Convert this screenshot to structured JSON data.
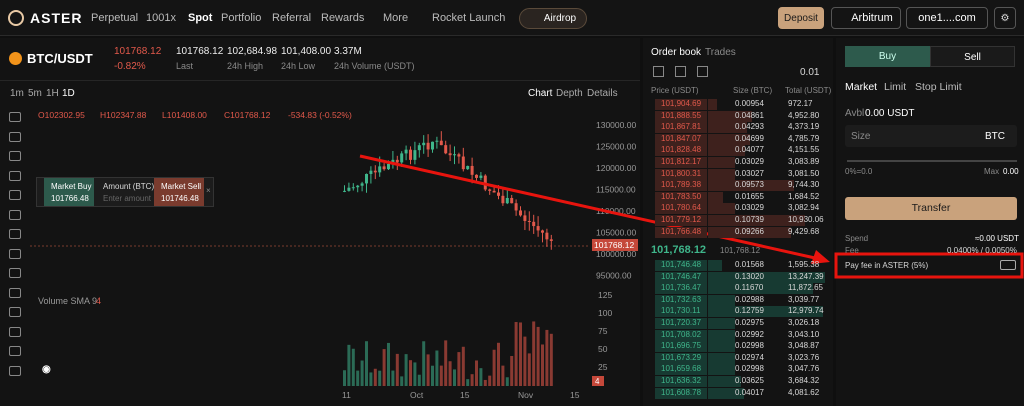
{
  "nav": {
    "logo": "ASTER",
    "items": [
      "Perpetual",
      "1001x",
      "Spot",
      "Portfolio",
      "Referral",
      "Rewards",
      "More",
      "Rocket Launch"
    ],
    "airdrop": "Airdrop",
    "deposit": "Deposit",
    "network": "Arbitrum",
    "account": "one1....com"
  },
  "ticker": {
    "pair": "BTC/USDT",
    "price": "101768.12",
    "change": "-0.82%",
    "stats": [
      {
        "value": "101768.12",
        "label": "Last"
      },
      {
        "value": "102,684.98",
        "label": "24h High"
      },
      {
        "value": "101,408.00",
        "label": "24h Low"
      },
      {
        "value": "3.37M",
        "label": "24h Volume (USDT)"
      }
    ]
  },
  "toolbar": {
    "intervals": [
      "1m",
      "5m",
      "1H",
      "1D"
    ],
    "views": [
      "Chart",
      "Depth",
      "Details"
    ]
  },
  "ohlc": [
    "O102302.95",
    "H102347.88",
    "L101408.00",
    "C101768.12",
    "-534.83 (-0.52%)"
  ],
  "quick_trade": {
    "buy": "Market Buy",
    "buy_price": "101766.48",
    "amount": "Amount (BTC)",
    "placeholder": "Enter amount",
    "sell": "Market Sell",
    "sell_price": "101746.48"
  },
  "price_axis": [
    "130000.00",
    "125000.00",
    "120000.00",
    "115000.00",
    "110000.00",
    "105000.00",
    "100000.00",
    "95000.00"
  ],
  "current_price": "101768.12",
  "volume": {
    "label": "Volume SMA 9",
    "value": "4",
    "axis": [
      "125",
      "100",
      "75",
      "50",
      "25"
    ],
    "current": "4"
  },
  "x_axis": [
    "11",
    "Oct",
    "15",
    "Nov",
    "15"
  ],
  "order_book": {
    "tabs": [
      "Order book",
      "Trades"
    ],
    "step": "0.01",
    "headers": [
      "Price (USDT)",
      "Size (BTC)",
      "Total (USDT)"
    ],
    "asks": [
      [
        "101,904.69",
        "0.00954",
        "972.17"
      ],
      [
        "101,888.55",
        "0.04861",
        "4,952.80"
      ],
      [
        "101,867.81",
        "0.04293",
        "4,373.19"
      ],
      [
        "101,847.07",
        "0.04699",
        "4,785.79"
      ],
      [
        "101,828.48",
        "0.04077",
        "4,151.55"
      ],
      [
        "101,812.17",
        "0.03029",
        "3,083.89"
      ],
      [
        "101,800.31",
        "0.03027",
        "3,081.50"
      ],
      [
        "101,789.38",
        "0.09573",
        "9,744.30"
      ],
      [
        "101,783.50",
        "0.01655",
        "1,684.52"
      ],
      [
        "101,780.64",
        "0.03029",
        "3,082.94"
      ],
      [
        "101,779.12",
        "0.10739",
        "10,930.06"
      ],
      [
        "101,766.48",
        "0.09266",
        "9,429.68"
      ]
    ],
    "mid": "101,768.12",
    "mid_ref": "101,768.12",
    "bids": [
      [
        "101,746.48",
        "0.01568",
        "1,595.38"
      ],
      [
        "101,746.47",
        "0.13020",
        "13,247.39"
      ],
      [
        "101,736.47",
        "0.11670",
        "11,872.65"
      ],
      [
        "101,732.63",
        "0.02988",
        "3,039.77"
      ],
      [
        "101,730.11",
        "0.12759",
        "12,979.74"
      ],
      [
        "101,720.37",
        "0.02975",
        "3,026.18"
      ],
      [
        "101,708.02",
        "0.02992",
        "3,043.10"
      ],
      [
        "101,696.75",
        "0.02998",
        "3,048.87"
      ],
      [
        "101,673.29",
        "0.02974",
        "3,023.76"
      ],
      [
        "101,659.68",
        "0.02998",
        "3,047.76"
      ],
      [
        "101,636.32",
        "0.03625",
        "3,684.32"
      ],
      [
        "101,608.78",
        "0.04017",
        "4,081.62"
      ]
    ]
  },
  "order_form": {
    "tabs": [
      "Buy",
      "Sell"
    ],
    "types": [
      "Market",
      "Limit",
      "Stop Limit"
    ],
    "avbl_label": "Avbl",
    "avbl": "0.00 USDT",
    "size": "Size",
    "size_unit": "BTC",
    "min": "0%=0.0",
    "max_label": "Max",
    "max": "0.00",
    "transfer": "Transfer",
    "spend_label": "Spend",
    "spend": "≈0.00 USDT",
    "fee_label": "Fee",
    "fee": "0.0400% / 0.0050%",
    "pay_fee": "Pay fee in ASTER (5%)"
  }
}
